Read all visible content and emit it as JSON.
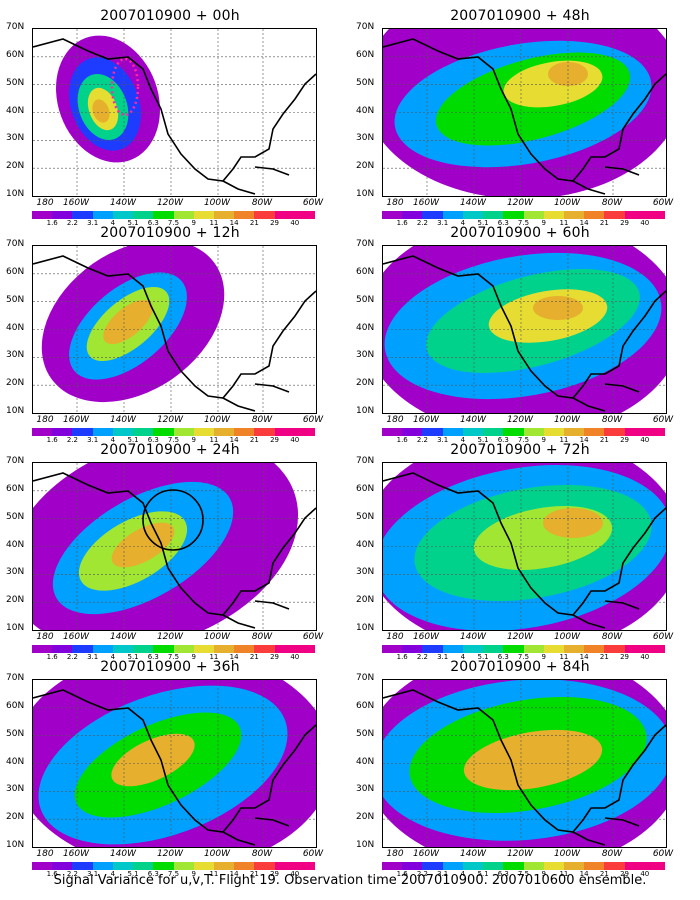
{
  "panels": [
    {
      "title": "2007010900 + 00h"
    },
    {
      "title": "2007010900 + 48h"
    },
    {
      "title": "2007010900 + 12h"
    },
    {
      "title": "2007010900 + 60h"
    },
    {
      "title": "2007010900 + 24h"
    },
    {
      "title": "2007010900 + 72h"
    },
    {
      "title": "2007010900 + 36h"
    },
    {
      "title": "2007010900 + 84h"
    }
  ],
  "y_labels": [
    "70N",
    "60N",
    "50N",
    "40N",
    "30N",
    "20N",
    "10N"
  ],
  "x_labels": [
    "180",
    "160W",
    "140W",
    "120W",
    "100W",
    "80W",
    "60W"
  ],
  "colorbar": {
    "ticks": [
      "1.6",
      "2.2",
      "3.1",
      "4",
      "5.1",
      "6.3",
      "7.5",
      "9",
      "11",
      "14",
      "21",
      "29",
      "40"
    ],
    "colors": [
      "#a000c8",
      "#8200dc",
      "#1e3cff",
      "#00a0ff",
      "#00c8c8",
      "#00d28c",
      "#00dc00",
      "#a0e632",
      "#e6dc32",
      "#e6af2d",
      "#f08228",
      "#fa3c3c",
      "#f00082"
    ]
  },
  "caption": "Signal Variance for u,v,T. Flight 19. Observation time 2007010900. 2007010600 ensemble."
}
